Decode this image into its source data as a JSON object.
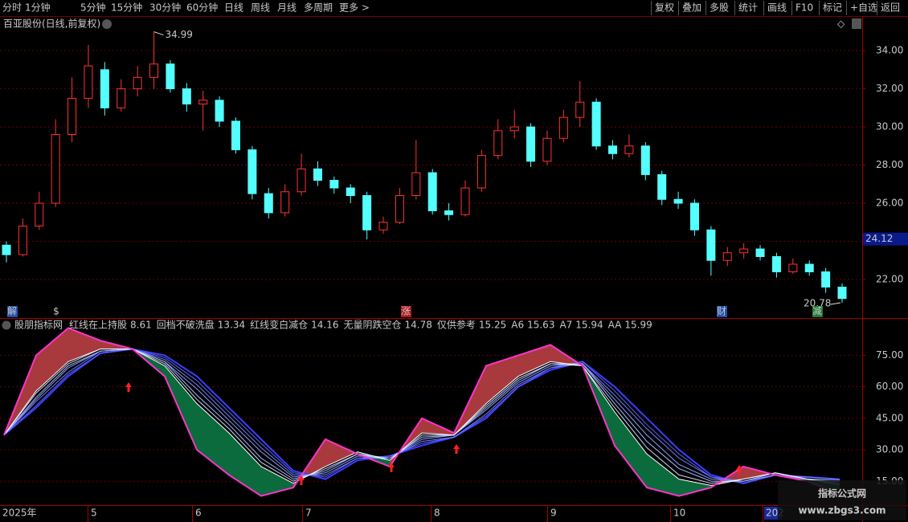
{
  "toolbar": {
    "left": [
      "分时",
      "1分钟",
      "5分钟",
      "15分钟",
      "30分钟",
      "60分钟",
      "日线",
      "周线",
      "月线",
      "多周期",
      "更多 >"
    ],
    "right": [
      "复权",
      "叠加",
      "多股",
      "统计",
      "画线",
      "F10",
      "标记",
      "+自选",
      "返回"
    ]
  },
  "chart_data": [
    {
      "type": "candlestick",
      "title": "百亚股份(日线,前复权)",
      "up_color": "#ff3232",
      "down_color": "#54ffff",
      "open": [
        23.8,
        23.3,
        24.8,
        26.0,
        29.6,
        31.5,
        33.0,
        31.0,
        32.0,
        32.6,
        33.3,
        32.0,
        31.2,
        31.4,
        30.3,
        28.8,
        26.5,
        25.5,
        26.6,
        27.8,
        27.2,
        26.8,
        26.4,
        24.6,
        25.0,
        26.4,
        27.6,
        25.6,
        25.4,
        26.8,
        28.5,
        29.8,
        30.0,
        28.2,
        29.4,
        30.5,
        31.3,
        29.0,
        28.6,
        29.0,
        27.5,
        26.2,
        26.0,
        24.6,
        23.0,
        23.4,
        23.6,
        23.2,
        22.4,
        22.8,
        22.4,
        21.6
      ],
      "high": [
        24.0,
        25.2,
        26.6,
        30.4,
        32.6,
        34.3,
        33.4,
        32.5,
        33.2,
        34.99,
        33.5,
        32.3,
        31.9,
        31.6,
        30.5,
        29.0,
        26.8,
        27.0,
        28.6,
        28.2,
        27.4,
        27.0,
        26.6,
        25.3,
        26.8,
        29.3,
        27.8,
        26.0,
        27.2,
        28.8,
        30.4,
        30.9,
        30.2,
        29.8,
        30.9,
        32.4,
        31.5,
        29.3,
        29.6,
        29.2,
        27.7,
        26.6,
        26.2,
        24.8,
        23.7,
        23.9,
        23.8,
        23.4,
        23.1,
        23.0,
        22.6,
        21.8
      ],
      "low": [
        22.9,
        23.2,
        24.6,
        25.8,
        29.2,
        31.0,
        30.6,
        30.8,
        31.6,
        32.0,
        31.8,
        30.8,
        29.8,
        30.0,
        28.6,
        26.2,
        25.2,
        25.3,
        26.4,
        26.9,
        26.5,
        26.0,
        24.1,
        24.4,
        24.9,
        26.2,
        25.4,
        25.1,
        25.3,
        26.6,
        28.3,
        29.4,
        27.9,
        28.0,
        29.2,
        30.0,
        28.8,
        28.3,
        28.4,
        27.2,
        25.9,
        25.7,
        24.3,
        22.2,
        22.7,
        23.1,
        23.0,
        22.1,
        22.3,
        22.2,
        21.3,
        20.78
      ],
      "close": [
        23.3,
        24.8,
        26.0,
        29.6,
        31.5,
        33.2,
        31.0,
        32.0,
        32.6,
        33.3,
        32.0,
        31.2,
        31.4,
        30.3,
        28.8,
        26.5,
        25.5,
        26.6,
        27.8,
        27.2,
        26.8,
        26.4,
        24.6,
        25.0,
        26.4,
        27.6,
        25.6,
        25.4,
        26.8,
        28.5,
        29.8,
        30.0,
        28.2,
        29.4,
        30.5,
        31.3,
        29.0,
        28.6,
        29.0,
        27.5,
        26.2,
        26.0,
        24.6,
        23.0,
        23.4,
        23.6,
        23.2,
        22.4,
        22.8,
        22.4,
        21.6,
        21.0
      ],
      "ylim": [
        20.02,
        35.73
      ],
      "yticks": [
        {
          "value": 22,
          "label": "22.00"
        },
        {
          "value": 24,
          "label": "24.00"
        },
        {
          "value": 26,
          "label": "26.00"
        },
        {
          "value": 28,
          "label": "28.00"
        },
        {
          "value": 30,
          "label": "30.00"
        },
        {
          "value": 32,
          "label": "32.00"
        },
        {
          "value": 34,
          "label": "34.00"
        }
      ],
      "grid": true,
      "current_price": 24.12,
      "event_markers": [
        "解",
        "$",
        "涨",
        "财",
        "减"
      ]
    },
    {
      "type": "line",
      "title": "股朋指标网",
      "ylim": [
        4,
        92
      ],
      "yticks": [
        {
          "value": 15,
          "label": "15.00"
        },
        {
          "value": 30,
          "label": "30.00"
        },
        {
          "value": 45,
          "label": "45.00"
        },
        {
          "value": 60,
          "label": "60.00"
        },
        {
          "value": 75,
          "label": "75.00"
        }
      ],
      "grid": true,
      "up_fill": "#a83a3e",
      "down_fill": "#0b6b3c",
      "series": [
        {
          "name": "红线在上持股",
          "color": "#ff33cc",
          "values": [
            37,
            75,
            88,
            82,
            78,
            65,
            30,
            18,
            8,
            12,
            35,
            28,
            22,
            45,
            38,
            70,
            75,
            80,
            70,
            32,
            12,
            8,
            12,
            22,
            18,
            15,
            8.61
          ]
        },
        {
          "name": "回档不破洗盘",
          "color": "#ffffff",
          "values": [
            37,
            58,
            72,
            78,
            78,
            70,
            52,
            38,
            22,
            14,
            22,
            29,
            25,
            38,
            37,
            52,
            65,
            72,
            70,
            48,
            28,
            16,
            13,
            16,
            19,
            16,
            13.34
          ]
        },
        {
          "name": "红线变白减仓",
          "color": "#c8d8ff",
          "values": [
            37,
            57,
            71,
            78,
            78,
            71,
            54,
            40,
            24,
            15,
            21,
            28,
            25,
            37,
            37,
            51,
            64,
            71,
            70,
            50,
            31,
            18,
            14,
            16,
            19,
            16,
            14.16
          ]
        },
        {
          "name": "无量阴跌空仓",
          "color": "#a8b8ff",
          "values": [
            37,
            55,
            70,
            77,
            78,
            72,
            56,
            42,
            26,
            16,
            20,
            28,
            26,
            36,
            37,
            50,
            63,
            71,
            71,
            52,
            34,
            21,
            15,
            15,
            19,
            16,
            14.78
          ]
        },
        {
          "name": "仅供参考",
          "color": "#8c9cff",
          "values": [
            37,
            54,
            69,
            77,
            78,
            72,
            59,
            44,
            29,
            17,
            19,
            27,
            26,
            35,
            37,
            49,
            62,
            70,
            71,
            54,
            37,
            23,
            16,
            15,
            18,
            16,
            15.25
          ]
        },
        {
          "name": "A6",
          "color": "#7282ff",
          "values": [
            37,
            53,
            67,
            77,
            78,
            73,
            61,
            46,
            31,
            18,
            18,
            26,
            26,
            34,
            36,
            47,
            61,
            69,
            71,
            56,
            40,
            26,
            17,
            15,
            18,
            17,
            15.63
          ]
        },
        {
          "name": "A7",
          "color": "#5a64ff",
          "values": [
            37,
            51,
            66,
            76,
            78,
            74,
            63,
            48,
            33,
            19,
            17,
            26,
            27,
            33,
            36,
            46,
            60,
            69,
            72,
            58,
            42,
            28,
            17,
            14,
            18,
            17,
            15.94
          ]
        },
        {
          "name": "AA",
          "color": "#3c3cff",
          "values": [
            37,
            50,
            65,
            76,
            78,
            75,
            65,
            50,
            35,
            20,
            16,
            25,
            27,
            32,
            36,
            45,
            60,
            68,
            72,
            60,
            45,
            30,
            18,
            14,
            18,
            17,
            15.99
          ]
        }
      ],
      "x_labels": [
        "2025年",
        "5",
        "6",
        "7",
        "8",
        "9",
        "10",
        "202"
      ]
    }
  ],
  "watermark": {
    "title": "指标公式网",
    "url": "www.zbgs3.com"
  }
}
